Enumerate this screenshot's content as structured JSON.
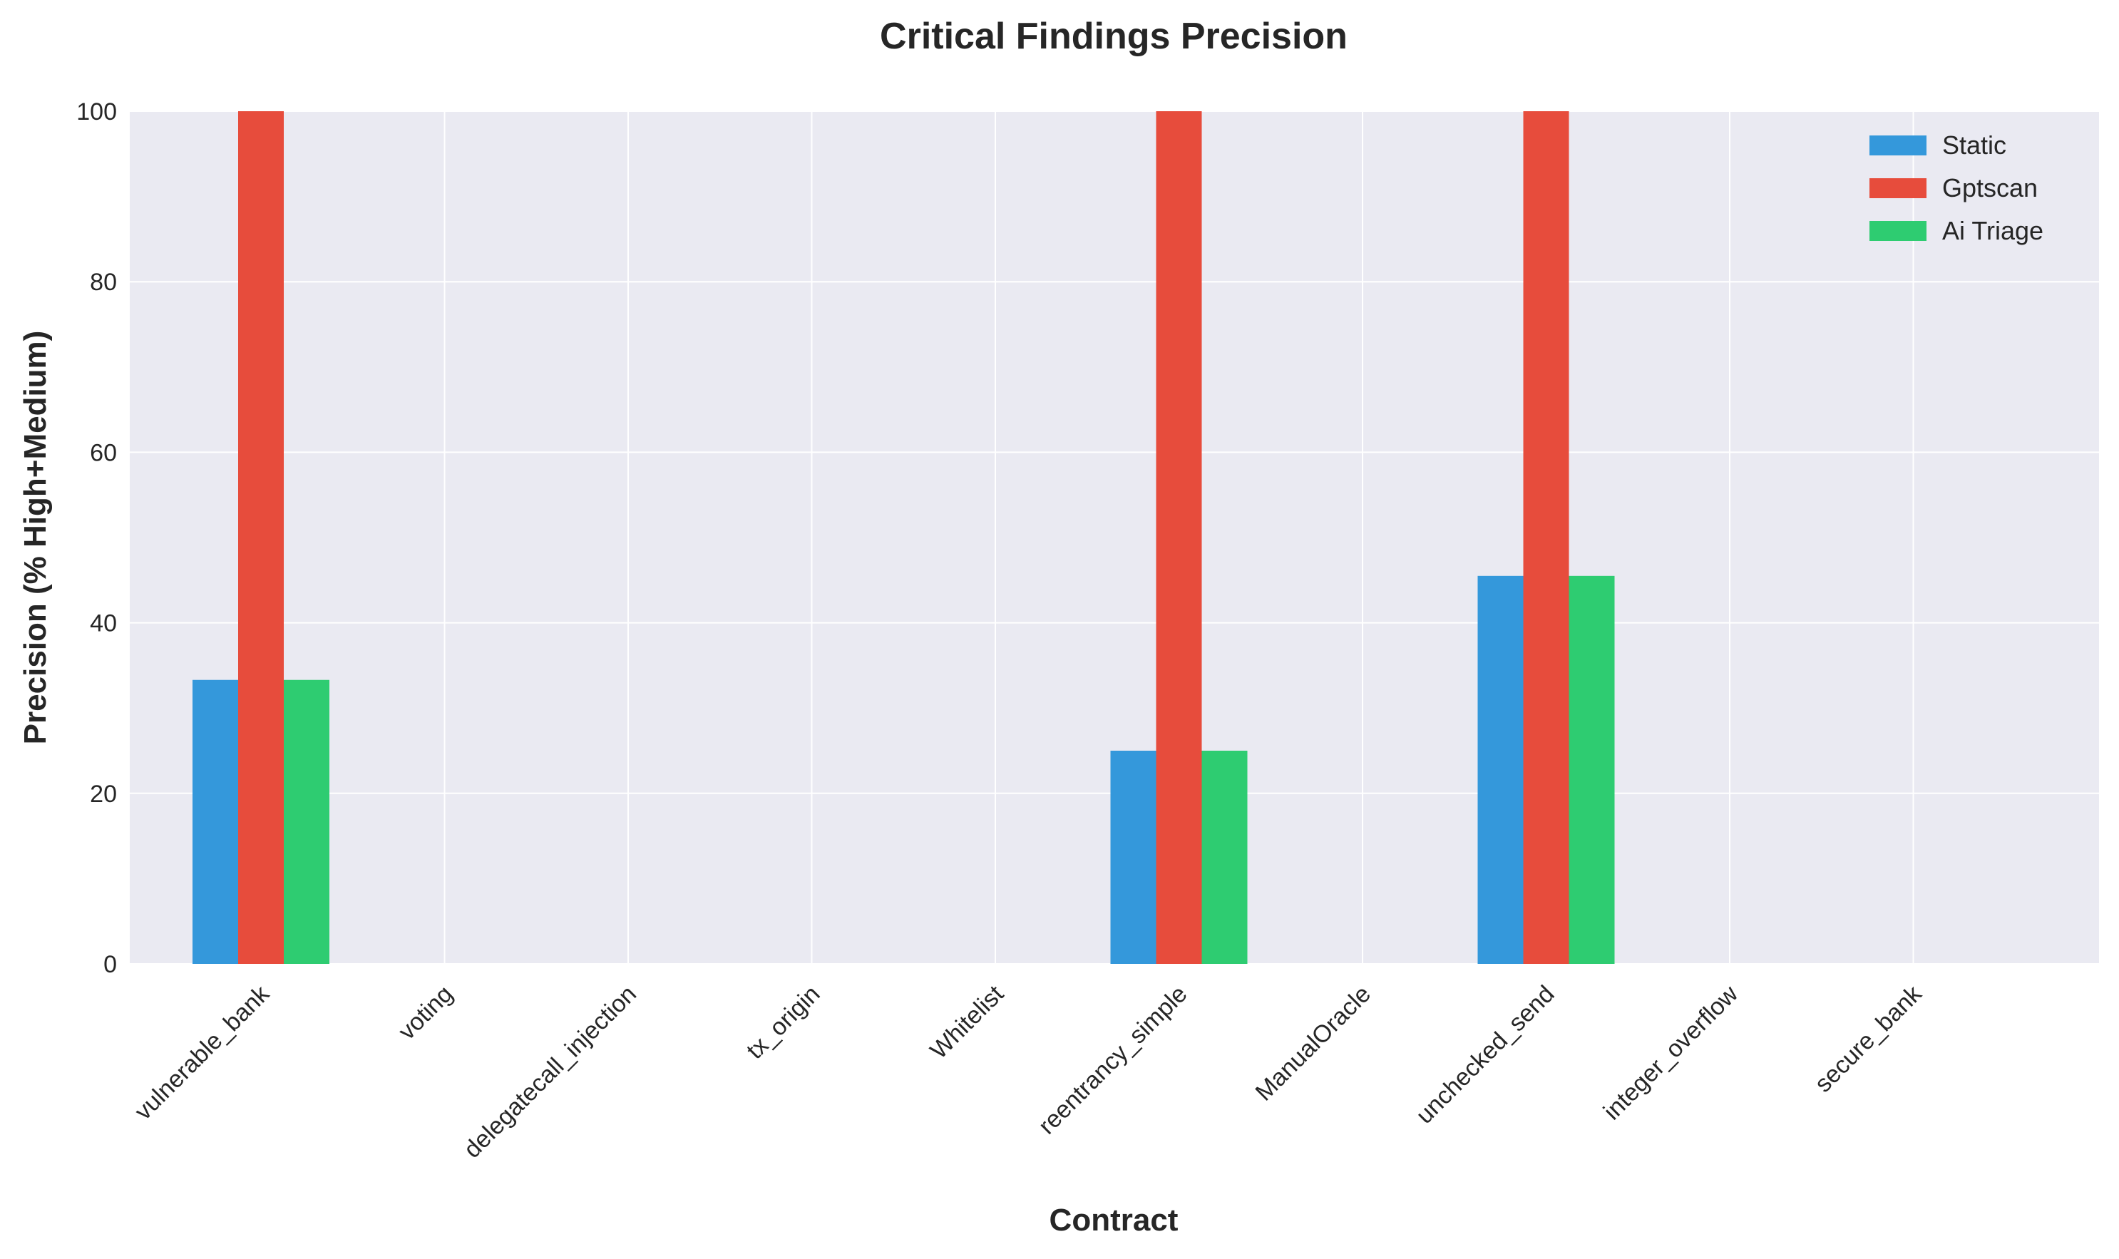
{
  "chart_data": {
    "type": "bar",
    "title": "Critical Findings Precision",
    "xlabel": "Contract",
    "ylabel": "Precision (% High+Medium)",
    "ylim": [
      0,
      100
    ],
    "yticks": [
      0,
      20,
      40,
      60,
      80,
      100
    ],
    "grid": true,
    "legend_position": "top-right",
    "categories": [
      "vulnerable_bank",
      "voting",
      "delegatecall_injection",
      "tx_origin",
      "Whitelist",
      "reentrancy_simple",
      "ManualOracle",
      "unchecked_send",
      "integer_overflow",
      "secure_bank"
    ],
    "series": [
      {
        "name": "Static",
        "color": "#3498db",
        "values": [
          33.3,
          0,
          0,
          0,
          0,
          25,
          0,
          45.5,
          0,
          0
        ]
      },
      {
        "name": "Gptscan",
        "color": "#e74c3c",
        "values": [
          100,
          0,
          0,
          0,
          0,
          100,
          0,
          100,
          0,
          0
        ]
      },
      {
        "name": "Ai Triage",
        "color": "#2ecc71",
        "values": [
          33.3,
          0,
          0,
          0,
          0,
          25,
          0,
          45.5,
          0,
          0
        ]
      }
    ]
  }
}
